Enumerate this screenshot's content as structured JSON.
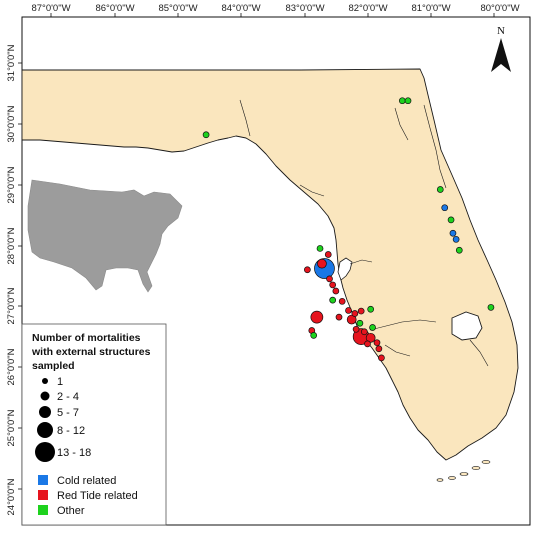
{
  "map": {
    "longitude_labels": [
      "87°0'0\"W",
      "86°0'0\"W",
      "85°0'0\"W",
      "84°0'0\"W",
      "83°0'0\"W",
      "82°0'0\"W",
      "81°0'0\"W",
      "80°0'0\"W"
    ],
    "latitude_labels": [
      "31°0'0\"N",
      "30°0'0\"N",
      "29°0'0\"N",
      "28°0'0\"N",
      "27°0'0\"N",
      "26°0'0\"N",
      "25°0'0\"N",
      "24°0'0\"N"
    ],
    "north_arrow_label": "N",
    "colors": {
      "land": "#fae6be",
      "water": "#ffffff",
      "inset_land": "#9c9c9c",
      "coastline": "#1a1a1a"
    }
  },
  "legend": {
    "title_lines": [
      "Number of mortalities",
      "with external structures",
      "sampled"
    ],
    "size_classes": [
      "1",
      "2 - 4",
      "5 - 7",
      "8 - 12",
      "13 - 18"
    ],
    "categories": [
      {
        "label": "Cold related",
        "color": "#1a78e6"
      },
      {
        "label": "Red Tide related",
        "color": "#e6141e"
      },
      {
        "label": "Other",
        "color": "#1ed21e"
      }
    ]
  },
  "mortalities": [
    {
      "lon": -84.55,
      "lat": 29.82,
      "category": "Other",
      "size_class": "1"
    },
    {
      "lon": -81.45,
      "lat": 30.38,
      "category": "Other",
      "size_class": "1"
    },
    {
      "lon": -81.36,
      "lat": 30.38,
      "category": "Other",
      "size_class": "1"
    },
    {
      "lon": -80.85,
      "lat": 28.92,
      "category": "Other",
      "size_class": "1"
    },
    {
      "lon": -80.78,
      "lat": 28.62,
      "category": "Cold related",
      "size_class": "1"
    },
    {
      "lon": -80.68,
      "lat": 28.42,
      "category": "Other",
      "size_class": "1"
    },
    {
      "lon": -80.65,
      "lat": 28.2,
      "category": "Cold related",
      "size_class": "1"
    },
    {
      "lon": -80.6,
      "lat": 28.1,
      "category": "Cold related",
      "size_class": "1"
    },
    {
      "lon": -80.55,
      "lat": 27.92,
      "category": "Other",
      "size_class": "1"
    },
    {
      "lon": -80.05,
      "lat": 26.98,
      "category": "Other",
      "size_class": "1"
    },
    {
      "lon": -82.75,
      "lat": 27.95,
      "category": "Other",
      "size_class": "1"
    },
    {
      "lon": -82.62,
      "lat": 27.85,
      "category": "Red Tide related",
      "size_class": "1"
    },
    {
      "lon": -82.72,
      "lat": 27.7,
      "category": "Red Tide related",
      "size_class": "2 - 4"
    },
    {
      "lon": -82.68,
      "lat": 27.62,
      "category": "Cold related",
      "size_class": "13 - 18"
    },
    {
      "lon": -82.95,
      "lat": 27.6,
      "category": "Red Tide related",
      "size_class": "1"
    },
    {
      "lon": -82.6,
      "lat": 27.45,
      "category": "Red Tide related",
      "size_class": "1"
    },
    {
      "lon": -82.55,
      "lat": 27.35,
      "category": "Red Tide related",
      "size_class": "1"
    },
    {
      "lon": -82.5,
      "lat": 27.25,
      "category": "Red Tide related",
      "size_class": "1"
    },
    {
      "lon": -82.55,
      "lat": 27.1,
      "category": "Other",
      "size_class": "1"
    },
    {
      "lon": -82.4,
      "lat": 27.08,
      "category": "Red Tide related",
      "size_class": "1"
    },
    {
      "lon": -82.3,
      "lat": 26.93,
      "category": "Red Tide related",
      "size_class": "1"
    },
    {
      "lon": -82.2,
      "lat": 26.88,
      "category": "Red Tide related",
      "size_class": "1"
    },
    {
      "lon": -82.1,
      "lat": 26.92,
      "category": "Red Tide related",
      "size_class": "1"
    },
    {
      "lon": -81.95,
      "lat": 26.95,
      "category": "Other",
      "size_class": "1"
    },
    {
      "lon": -82.8,
      "lat": 26.82,
      "category": "Red Tide related",
      "size_class": "5 - 7"
    },
    {
      "lon": -82.45,
      "lat": 26.82,
      "category": "Red Tide related",
      "size_class": "1"
    },
    {
      "lon": -82.25,
      "lat": 26.78,
      "category": "Red Tide related",
      "size_class": "2 - 4"
    },
    {
      "lon": -82.12,
      "lat": 26.72,
      "category": "Other",
      "size_class": "1"
    },
    {
      "lon": -82.18,
      "lat": 26.62,
      "category": "Red Tide related",
      "size_class": "1"
    },
    {
      "lon": -82.05,
      "lat": 26.58,
      "category": "Red Tide related",
      "size_class": "1"
    },
    {
      "lon": -81.92,
      "lat": 26.65,
      "category": "Other",
      "size_class": "1"
    },
    {
      "lon": -82.1,
      "lat": 26.5,
      "category": "Red Tide related",
      "size_class": "8 - 12"
    },
    {
      "lon": -81.95,
      "lat": 26.48,
      "category": "Red Tide related",
      "size_class": "2 - 4"
    },
    {
      "lon": -81.85,
      "lat": 26.4,
      "category": "Red Tide related",
      "size_class": "1"
    },
    {
      "lon": -82.0,
      "lat": 26.38,
      "category": "Red Tide related",
      "size_class": "1"
    },
    {
      "lon": -81.82,
      "lat": 26.3,
      "category": "Red Tide related",
      "size_class": "1"
    },
    {
      "lon": -81.78,
      "lat": 26.15,
      "category": "Red Tide related",
      "size_class": "1"
    },
    {
      "lon": -82.88,
      "lat": 26.6,
      "category": "Red Tide related",
      "size_class": "1"
    },
    {
      "lon": -82.85,
      "lat": 26.52,
      "category": "Other",
      "size_class": "1"
    }
  ]
}
